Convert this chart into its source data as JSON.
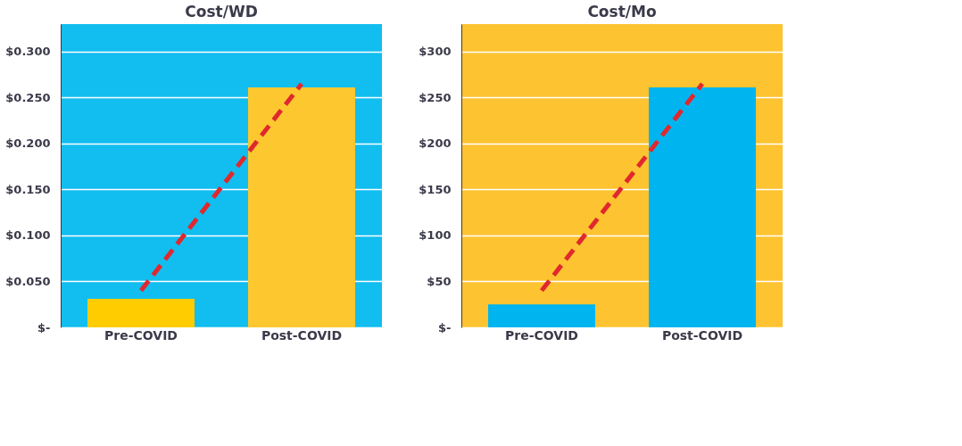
{
  "chart_data": [
    {
      "type": "bar",
      "title": "Cost/WD",
      "categories": [
        "Pre-COVID",
        "Post-COVID"
      ],
      "series": [
        {
          "colors": [
            "#ffcc00",
            "#fdc82f"
          ],
          "values": [
            0.031,
            0.261
          ]
        },
        {
          "type": "line",
          "color": "#e0282e",
          "line_style": "dashed",
          "values": [
            0.04,
            0.265
          ]
        }
      ],
      "ylim": [
        0,
        0.33
      ],
      "yticks": [
        {
          "value": 0,
          "label": "$-"
        },
        {
          "value": 0.05,
          "label": "$0.050"
        },
        {
          "value": 0.1,
          "label": "$0.100"
        },
        {
          "value": 0.15,
          "label": "$0.150"
        },
        {
          "value": 0.2,
          "label": "$0.200"
        },
        {
          "value": 0.25,
          "label": "$0.250"
        },
        {
          "value": 0.3,
          "label": "$0.300"
        }
      ],
      "grid": "y"
    },
    {
      "type": "bar",
      "title": "Cost/Mo",
      "categories": [
        "Pre-COVID",
        "Post-COVID"
      ],
      "series": [
        {
          "colors": [
            "#00b5ef",
            "#00b5ef"
          ],
          "values": [
            25,
            261
          ]
        },
        {
          "type": "line",
          "color": "#e0282e",
          "line_style": "dashed",
          "values": [
            40,
            265
          ]
        }
      ],
      "ylim": [
        0,
        330
      ],
      "yticks": [
        {
          "value": 0,
          "label": "$-"
        },
        {
          "value": 50,
          "label": "$50"
        },
        {
          "value": 100,
          "label": "$100"
        },
        {
          "value": 150,
          "label": "$150"
        },
        {
          "value": 200,
          "label": "$200"
        },
        {
          "value": 250,
          "label": "$250"
        },
        {
          "value": 300,
          "label": "$300"
        }
      ],
      "grid": "y"
    }
  ]
}
